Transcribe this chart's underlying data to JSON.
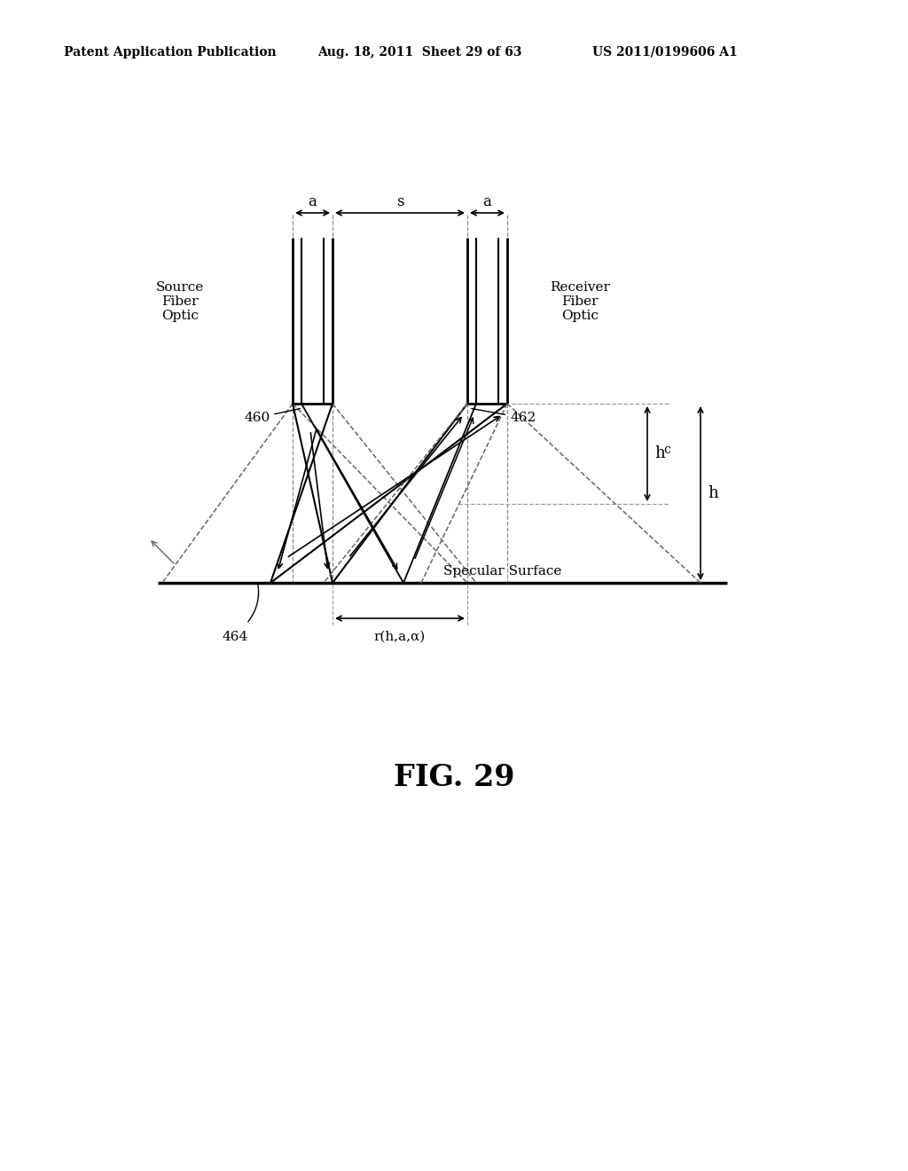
{
  "title": "FIG. 29",
  "header_left": "Patent Application Publication",
  "header_mid": "Aug. 18, 2011  Sheet 29 of 63",
  "header_right": "US 2011/0199606 A1",
  "bg_color": "#ffffff",
  "line_color": "#000000",
  "gray_color": "#666666",
  "source_label": "Source\nFiber\nOptic",
  "receiver_label": "Receiver\nFiber\nOptic",
  "label_460": "460",
  "label_462": "462",
  "label_464": "464",
  "label_specular": "Specular Surface",
  "label_a": "a",
  "label_s": "s",
  "label_hc": "h",
  "label_hc_sub": "c",
  "label_h": "h",
  "label_r": "r(h,a,α)"
}
